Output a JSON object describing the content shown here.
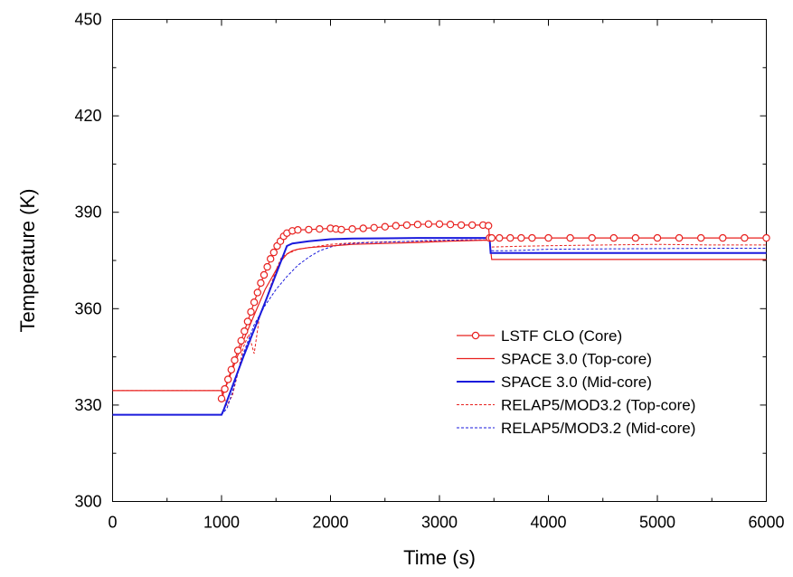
{
  "chart_data": {
    "type": "line",
    "title": "",
    "xlabel": "Time (s)",
    "ylabel": "Temperature (K)",
    "xlim": [
      0,
      6000
    ],
    "ylim": [
      300,
      450
    ],
    "xticks": [
      0,
      1000,
      2000,
      3000,
      4000,
      5000,
      6000
    ],
    "yticks": [
      300,
      330,
      360,
      390,
      420,
      450
    ],
    "grid": false,
    "legend_position": "center-right",
    "series": [
      {
        "name": "LSTF CLO (Core)",
        "color": "#e8201e",
        "style": "line-circles",
        "x": [
          1000,
          1030,
          1060,
          1090,
          1120,
          1150,
          1180,
          1210,
          1240,
          1270,
          1300,
          1330,
          1360,
          1390,
          1420,
          1450,
          1480,
          1510,
          1540,
          1570,
          1600,
          1650,
          1700,
          1800,
          1900,
          2000,
          2050,
          2100,
          2200,
          2300,
          2400,
          2500,
          2600,
          2700,
          2800,
          2900,
          3000,
          3100,
          3200,
          3300,
          3400,
          3450,
          3460,
          3480,
          3550,
          3650,
          3750,
          3850,
          4000,
          4200,
          4400,
          4600,
          4800,
          5000,
          5200,
          5400,
          5600,
          5800,
          6000
        ],
        "y": [
          332,
          335,
          338,
          341,
          344,
          347,
          350,
          353,
          356,
          359,
          362,
          365,
          368,
          370.5,
          373,
          375.5,
          377.5,
          379.5,
          381,
          382.5,
          383.5,
          384.2,
          384.5,
          384.6,
          384.8,
          385,
          384.8,
          384.6,
          384.8,
          385,
          385.2,
          385.5,
          385.8,
          386,
          386.2,
          386.3,
          386.3,
          386.2,
          386,
          386,
          386,
          385.8,
          382,
          382,
          382,
          382,
          382,
          382,
          382,
          382,
          382,
          382,
          382,
          382,
          382,
          382,
          382,
          382,
          382
        ]
      },
      {
        "name": "SPACE 3.0 (Top-core)",
        "color": "#e8201e",
        "style": "solid",
        "x": [
          0,
          1000,
          1010,
          1100,
          1200,
          1300,
          1400,
          1500,
          1550,
          1600,
          1650,
          1700,
          1800,
          2000,
          2200,
          2500,
          2800,
          3100,
          3400,
          3460,
          3480,
          3600,
          4000,
          5000,
          6000
        ],
        "y": [
          334.5,
          334.5,
          333,
          341,
          350,
          358,
          366,
          372,
          375,
          377,
          378,
          378.5,
          379,
          379.5,
          380,
          380.3,
          380.6,
          381,
          381.3,
          381.3,
          375.3,
          375.3,
          375.3,
          375.3,
          375.3
        ]
      },
      {
        "name": "SPACE 3.0 (Mid-core)",
        "color": "#1a1adc",
        "style": "solid-bold",
        "x": [
          0,
          1000,
          1020,
          1200,
          1400,
          1600,
          1650,
          1800,
          2000,
          2200,
          2500,
          2800,
          3100,
          3300,
          3460,
          3470,
          3600,
          4000,
          5000,
          6000
        ],
        "y": [
          327,
          327,
          328.5,
          345,
          362,
          379.5,
          380.3,
          381,
          381.6,
          381.8,
          381.9,
          382,
          382,
          382,
          382,
          377.3,
          377.3,
          377.3,
          377.3,
          377.3
        ]
      },
      {
        "name": "RELAP5/MOD3.2 (Top-core)",
        "color": "#e8201e",
        "style": "dashed",
        "x": [
          0,
          1000,
          1050,
          1100,
          1150,
          1200,
          1250,
          1300,
          1350,
          1400,
          1450,
          1500,
          1550,
          1600,
          1700,
          1800,
          1900,
          2000,
          2200,
          2500,
          2800,
          3100,
          3400,
          3460,
          3470,
          3700,
          4000,
          4500,
          5000,
          5500,
          6000
        ],
        "y": [
          334.5,
          334.5,
          330,
          333,
          340,
          348,
          352,
          346,
          358,
          362,
          367,
          372,
          376,
          377,
          378.5,
          379,
          379.5,
          380,
          380.5,
          380.8,
          381,
          381.2,
          381.3,
          381.3,
          379.2,
          379.4,
          379.6,
          379.8,
          380,
          379.8,
          379.8
        ]
      },
      {
        "name": "RELAP5/MOD3.2 (Mid-core)",
        "color": "#1a1adc",
        "style": "dashed",
        "x": [
          0,
          1000,
          1050,
          1100,
          1200,
          1300,
          1400,
          1500,
          1600,
          1700,
          1800,
          1900,
          2000,
          2100,
          2300,
          2600,
          2900,
          3200,
          3400,
          3460,
          3470,
          3600,
          3800,
          4000,
          4500,
          5000,
          5500,
          6000
        ],
        "y": [
          327,
          327,
          329,
          334,
          346,
          355,
          361,
          366,
          370,
          373.5,
          376,
          378,
          379.2,
          380,
          380.5,
          380.8,
          381.2,
          381.4,
          381.4,
          381.4,
          378,
          378,
          378.2,
          378.5,
          378.6,
          378.7,
          378.8,
          378.8
        ]
      }
    ]
  }
}
